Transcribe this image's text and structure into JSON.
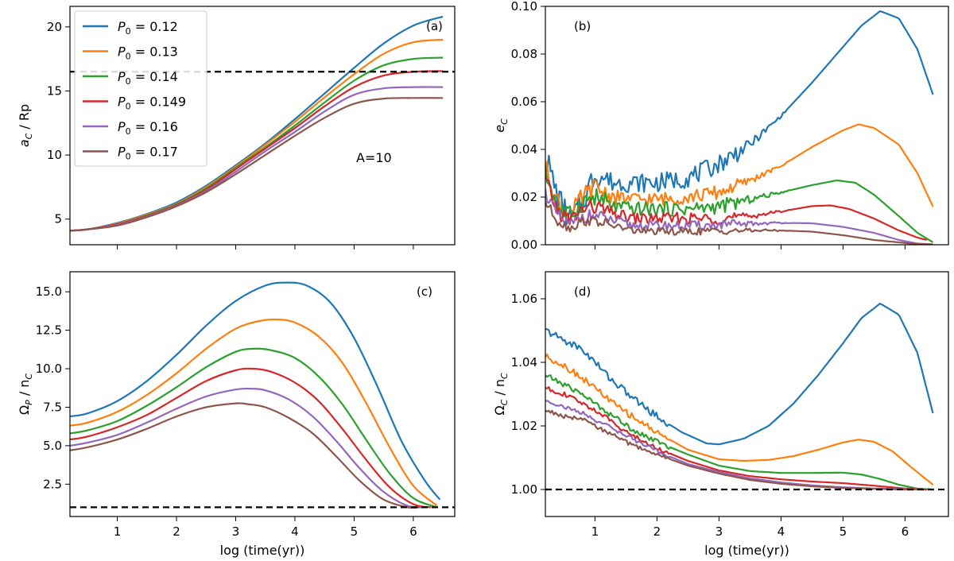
{
  "colors": {
    "series": [
      "#1f77b4",
      "#ff7f0e",
      "#2ca02c",
      "#d62728",
      "#9467bd",
      "#8c564b"
    ],
    "reference": "#000000"
  },
  "legend": [
    "P_0 = 0.12",
    "P_0 = 0.13",
    "P_0 = 0.14",
    "P_0 = 0.149",
    "P_0 = 0.16",
    "P_0 = 0.17"
  ],
  "chart_data": [
    {
      "panel": "a",
      "type": "line",
      "panel_label": "(a)",
      "ylabel": "a_C / Rp",
      "xlabel": "",
      "xlim": [
        0.2,
        6.7
      ],
      "ylim": [
        3.0,
        21.6
      ],
      "xticks": [
        1,
        2,
        3,
        4,
        5,
        6
      ],
      "show_xtick_labels": false,
      "yticks": [
        5,
        10,
        15,
        20
      ],
      "ytick_labels": [
        "5",
        "10",
        "15",
        "20"
      ],
      "annotation": "A=10",
      "legend_placement": "top-left",
      "reference_line": {
        "y": 16.5,
        "style": "dashed"
      },
      "series": [
        {
          "name": "P_0 = 0.12",
          "x": [
            0.2,
            0.5,
            1.0,
            1.5,
            2.0,
            2.5,
            3.0,
            3.5,
            4.0,
            4.5,
            5.0,
            5.5,
            6.0,
            6.5
          ],
          "y": [
            4.1,
            4.2,
            4.7,
            5.4,
            6.3,
            7.6,
            9.2,
            10.9,
            12.8,
            14.8,
            16.8,
            18.7,
            20.1,
            20.8
          ]
        },
        {
          "name": "P_0 = 0.13",
          "x": [
            0.2,
            0.5,
            1.0,
            1.5,
            2.0,
            2.5,
            3.0,
            3.5,
            4.0,
            4.5,
            5.0,
            5.5,
            6.0,
            6.5
          ],
          "y": [
            4.1,
            4.2,
            4.65,
            5.35,
            6.2,
            7.5,
            9.1,
            10.8,
            12.6,
            14.5,
            16.3,
            17.9,
            18.8,
            19.0
          ]
        },
        {
          "name": "P_0 = 0.14",
          "x": [
            0.2,
            0.5,
            1.0,
            1.5,
            2.0,
            2.5,
            3.0,
            3.5,
            4.0,
            4.5,
            5.0,
            5.5,
            6.0,
            6.5
          ],
          "y": [
            4.1,
            4.2,
            4.6,
            5.3,
            6.15,
            7.4,
            9.0,
            10.6,
            12.3,
            14.1,
            15.8,
            17.0,
            17.5,
            17.6
          ]
        },
        {
          "name": "P_0 = 0.149",
          "x": [
            0.2,
            0.5,
            1.0,
            1.5,
            2.0,
            2.5,
            3.0,
            3.5,
            4.0,
            4.5,
            5.0,
            5.5,
            6.0,
            6.5
          ],
          "y": [
            4.1,
            4.2,
            4.6,
            5.25,
            6.1,
            7.3,
            8.9,
            10.5,
            12.1,
            13.8,
            15.3,
            16.2,
            16.5,
            16.55
          ]
        },
        {
          "name": "P_0 = 0.16",
          "x": [
            0.2,
            0.5,
            1.0,
            1.5,
            2.0,
            2.5,
            3.0,
            3.5,
            4.0,
            4.5,
            5.0,
            5.5,
            6.0,
            6.5
          ],
          "y": [
            4.1,
            4.2,
            4.55,
            5.2,
            6.05,
            7.2,
            8.7,
            10.3,
            11.8,
            13.4,
            14.7,
            15.2,
            15.3,
            15.3
          ]
        },
        {
          "name": "P_0 = 0.17",
          "x": [
            0.2,
            0.5,
            1.0,
            1.5,
            2.0,
            2.5,
            3.0,
            3.5,
            4.0,
            4.5,
            5.0,
            5.5,
            6.0,
            6.5
          ],
          "y": [
            4.1,
            4.2,
            4.5,
            5.15,
            6.0,
            7.1,
            8.5,
            10.0,
            11.5,
            12.9,
            14.0,
            14.4,
            14.45,
            14.45
          ]
        }
      ]
    },
    {
      "panel": "b",
      "type": "line",
      "panel_label": "(b)",
      "ylabel": "e_C",
      "xlabel": "",
      "xlim": [
        0.2,
        6.7
      ],
      "ylim": [
        0.0,
        0.1
      ],
      "xticks": [
        1,
        2,
        3,
        4,
        5,
        6
      ],
      "show_xtick_labels": false,
      "yticks": [
        0.0,
        0.02,
        0.04,
        0.06,
        0.08,
        0.1
      ],
      "ytick_labels": [
        "0.00",
        "0.02",
        "0.04",
        "0.06",
        "0.08",
        "0.10"
      ],
      "series": [
        {
          "name": "P_0 = 0.12",
          "noise": 0.004,
          "x": [
            0.2,
            0.4,
            0.6,
            0.8,
            1.0,
            1.3,
            1.6,
            2.0,
            2.5,
            3.0,
            3.5,
            4.0,
            4.5,
            5.0,
            5.3,
            5.6,
            5.9,
            6.2,
            6.45
          ],
          "y": [
            0.038,
            0.02,
            0.01,
            0.018,
            0.03,
            0.026,
            0.026,
            0.026,
            0.028,
            0.034,
            0.042,
            0.054,
            0.068,
            0.083,
            0.092,
            0.098,
            0.095,
            0.082,
            0.063
          ]
        },
        {
          "name": "P_0 = 0.13",
          "noise": 0.003,
          "x": [
            0.2,
            0.4,
            0.6,
            0.8,
            1.0,
            1.3,
            1.6,
            2.0,
            2.5,
            3.0,
            3.5,
            4.0,
            4.5,
            5.0,
            5.25,
            5.5,
            5.9,
            6.2,
            6.45
          ],
          "y": [
            0.033,
            0.018,
            0.012,
            0.02,
            0.024,
            0.02,
            0.019,
            0.019,
            0.02,
            0.022,
            0.027,
            0.033,
            0.041,
            0.048,
            0.0505,
            0.049,
            0.042,
            0.03,
            0.016
          ]
        },
        {
          "name": "P_0 = 0.14",
          "noise": 0.003,
          "x": [
            0.2,
            0.4,
            0.6,
            0.8,
            1.0,
            1.3,
            1.6,
            2.0,
            2.5,
            3.0,
            3.5,
            4.0,
            4.5,
            4.9,
            5.2,
            5.5,
            5.9,
            6.2,
            6.45
          ],
          "y": [
            0.03,
            0.016,
            0.012,
            0.018,
            0.02,
            0.016,
            0.015,
            0.015,
            0.015,
            0.016,
            0.019,
            0.022,
            0.025,
            0.027,
            0.026,
            0.021,
            0.012,
            0.005,
            0.001
          ]
        },
        {
          "name": "P_0 = 0.149",
          "noise": 0.0025,
          "x": [
            0.2,
            0.4,
            0.6,
            0.8,
            1.0,
            1.3,
            1.6,
            2.0,
            2.5,
            3.0,
            3.5,
            4.0,
            4.5,
            4.8,
            5.1,
            5.5,
            5.9,
            6.2,
            6.35
          ],
          "y": [
            0.027,
            0.014,
            0.01,
            0.015,
            0.016,
            0.013,
            0.011,
            0.011,
            0.011,
            0.011,
            0.012,
            0.014,
            0.0162,
            0.0165,
            0.015,
            0.011,
            0.006,
            0.003,
            0.002
          ]
        },
        {
          "name": "P_0 = 0.16",
          "noise": 0.002,
          "x": [
            0.2,
            0.4,
            0.6,
            0.8,
            1.0,
            1.3,
            1.6,
            2.0,
            2.5,
            3.0,
            3.5,
            4.0,
            4.5,
            5.0,
            5.5,
            5.9,
            6.2,
            6.45
          ],
          "y": [
            0.022,
            0.012,
            0.008,
            0.012,
            0.012,
            0.01,
            0.008,
            0.008,
            0.008,
            0.0082,
            0.0088,
            0.0092,
            0.009,
            0.0075,
            0.005,
            0.002,
            0.0005,
            0.0002
          ]
        },
        {
          "name": "P_0 = 0.17",
          "noise": 0.0015,
          "x": [
            0.2,
            0.4,
            0.6,
            0.8,
            1.0,
            1.3,
            1.6,
            2.0,
            2.5,
            3.0,
            3.5,
            4.0,
            4.5,
            5.0,
            5.5,
            5.9,
            6.2,
            6.45
          ],
          "y": [
            0.018,
            0.01,
            0.007,
            0.01,
            0.01,
            0.008,
            0.006,
            0.0055,
            0.0055,
            0.0058,
            0.006,
            0.006,
            0.0055,
            0.004,
            0.002,
            0.001,
            0.0003,
            0.0001
          ]
        }
      ]
    },
    {
      "panel": "c",
      "type": "line",
      "panel_label": "(c)",
      "ylabel": "Ω_P / n_C",
      "xlabel": "log (time(yr))",
      "xlim": [
        0.2,
        6.7
      ],
      "ylim": [
        0.4,
        16.3
      ],
      "xticks": [
        1,
        2,
        3,
        4,
        5,
        6
      ],
      "show_xtick_labels": true,
      "yticks": [
        2.5,
        5.0,
        7.5,
        10.0,
        12.5,
        15.0
      ],
      "ytick_labels": [
        "2.5",
        "5.0",
        "7.5",
        "10.0",
        "12.5",
        "15.0"
      ],
      "reference_line": {
        "y": 1.0,
        "style": "dashed"
      },
      "series": [
        {
          "name": "P_0 = 0.12",
          "x": [
            0.2,
            0.5,
            1.0,
            1.5,
            2.0,
            2.5,
            3.0,
            3.5,
            3.85,
            4.2,
            4.6,
            5.0,
            5.4,
            5.8,
            6.2,
            6.45
          ],
          "y": [
            6.9,
            7.1,
            7.9,
            9.2,
            10.9,
            12.8,
            14.4,
            15.4,
            15.6,
            15.4,
            14.3,
            12.0,
            8.8,
            5.3,
            2.7,
            1.5
          ]
        },
        {
          "name": "P_0 = 0.13",
          "x": [
            0.2,
            0.5,
            1.0,
            1.5,
            2.0,
            2.5,
            3.0,
            3.4,
            3.7,
            4.0,
            4.4,
            4.8,
            5.2,
            5.6,
            6.0,
            6.4
          ],
          "y": [
            6.3,
            6.5,
            7.2,
            8.3,
            9.7,
            11.3,
            12.6,
            13.1,
            13.2,
            13.0,
            12.1,
            10.4,
            7.8,
            4.9,
            2.4,
            1.1
          ]
        },
        {
          "name": "P_0 = 0.14",
          "x": [
            0.2,
            0.5,
            1.0,
            1.5,
            2.0,
            2.5,
            3.0,
            3.3,
            3.6,
            4.0,
            4.4,
            4.8,
            5.2,
            5.6,
            6.0,
            6.4
          ],
          "y": [
            5.8,
            6.0,
            6.6,
            7.6,
            8.8,
            10.1,
            11.1,
            11.3,
            11.2,
            10.7,
            9.5,
            7.7,
            5.4,
            3.2,
            1.6,
            1.0
          ]
        },
        {
          "name": "P_0 = 0.149",
          "x": [
            0.2,
            0.5,
            1.0,
            1.5,
            2.0,
            2.5,
            3.0,
            3.3,
            3.6,
            4.0,
            4.4,
            4.8,
            5.2,
            5.6,
            6.0,
            6.3
          ],
          "y": [
            5.4,
            5.6,
            6.2,
            7.0,
            8.1,
            9.2,
            9.9,
            10.0,
            9.8,
            9.1,
            7.9,
            6.1,
            4.1,
            2.3,
            1.2,
            1.0
          ]
        },
        {
          "name": "P_0 = 0.16",
          "x": [
            0.2,
            0.5,
            1.0,
            1.5,
            2.0,
            2.5,
            3.0,
            3.25,
            3.5,
            3.9,
            4.3,
            4.7,
            5.1,
            5.5,
            5.9,
            6.2
          ],
          "y": [
            5.0,
            5.2,
            5.7,
            6.5,
            7.4,
            8.2,
            8.65,
            8.7,
            8.6,
            8.0,
            6.9,
            5.3,
            3.5,
            2.0,
            1.1,
            1.0
          ]
        },
        {
          "name": "P_0 = 0.17",
          "x": [
            0.2,
            0.5,
            1.0,
            1.5,
            2.0,
            2.5,
            3.0,
            3.2,
            3.5,
            3.9,
            4.3,
            4.7,
            5.1,
            5.5,
            5.9,
            6.1
          ],
          "y": [
            4.7,
            4.9,
            5.4,
            6.1,
            6.9,
            7.5,
            7.75,
            7.7,
            7.5,
            6.8,
            5.8,
            4.3,
            2.7,
            1.5,
            1.0,
            1.0
          ]
        }
      ]
    },
    {
      "panel": "d",
      "type": "line",
      "panel_label": "(d)",
      "ylabel": "Ω_C / n_C",
      "xlabel": "log (time(yr))",
      "xlim": [
        0.2,
        6.7
      ],
      "ylim": [
        0.9915,
        1.0685
      ],
      "xticks": [
        1,
        2,
        3,
        4,
        5,
        6
      ],
      "show_xtick_labels": true,
      "yticks": [
        1.0,
        1.02,
        1.04,
        1.06
      ],
      "ytick_labels": [
        "1.00",
        "1.02",
        "1.04",
        "1.06"
      ],
      "reference_line": {
        "y": 1.0,
        "style": "dashed"
      },
      "series": [
        {
          "name": "P_0 = 0.12",
          "noise": 0.0012,
          "x": [
            0.2,
            0.5,
            0.8,
            1.0,
            1.3,
            1.6,
            2.0,
            2.4,
            2.8,
            3.0,
            3.4,
            3.8,
            4.2,
            4.6,
            5.0,
            5.3,
            5.6,
            5.9,
            6.2,
            6.45
          ],
          "y": [
            1.05,
            1.047,
            1.044,
            1.04,
            1.034,
            1.029,
            1.023,
            1.018,
            1.0145,
            1.0142,
            1.016,
            1.02,
            1.027,
            1.036,
            1.046,
            1.054,
            1.0585,
            1.055,
            1.043,
            1.024
          ]
        },
        {
          "name": "P_0 = 0.13",
          "noise": 0.001,
          "x": [
            0.2,
            0.5,
            0.8,
            1.0,
            1.3,
            1.6,
            2.0,
            2.5,
            3.0,
            3.4,
            3.8,
            4.2,
            4.6,
            5.0,
            5.25,
            5.5,
            5.8,
            6.1,
            6.45
          ],
          "y": [
            1.042,
            1.039,
            1.035,
            1.032,
            1.027,
            1.023,
            1.018,
            1.0125,
            1.0095,
            1.009,
            1.0093,
            1.0105,
            1.0125,
            1.0148,
            1.0157,
            1.015,
            1.012,
            1.007,
            1.0015
          ]
        },
        {
          "name": "P_0 = 0.14",
          "noise": 0.0008,
          "x": [
            0.2,
            0.5,
            0.8,
            1.0,
            1.3,
            1.6,
            2.0,
            2.5,
            3.0,
            3.5,
            4.0,
            4.5,
            5.0,
            5.3,
            5.6,
            5.9,
            6.2,
            6.45
          ],
          "y": [
            1.036,
            1.033,
            1.03,
            1.027,
            1.023,
            1.019,
            1.015,
            1.011,
            1.0075,
            1.0058,
            1.0052,
            1.0052,
            1.0053,
            1.0047,
            1.0033,
            1.0015,
            1.0003,
            1.0
          ]
        },
        {
          "name": "P_0 = 0.149",
          "noise": 0.0007,
          "x": [
            0.2,
            0.5,
            0.8,
            1.0,
            1.3,
            1.6,
            2.0,
            2.5,
            3.0,
            3.5,
            4.0,
            4.5,
            5.0,
            5.5,
            6.0,
            6.35
          ],
          "y": [
            1.032,
            1.03,
            1.027,
            1.025,
            1.021,
            1.017,
            1.013,
            1.009,
            1.006,
            1.0042,
            1.0032,
            1.0025,
            1.002,
            1.0012,
            1.0003,
            1.0
          ]
        },
        {
          "name": "P_0 = 0.16",
          "noise": 0.0006,
          "x": [
            0.2,
            0.5,
            0.8,
            1.0,
            1.3,
            1.6,
            2.0,
            2.5,
            3.0,
            3.5,
            4.0,
            4.5,
            5.0,
            5.5,
            6.0,
            6.3
          ],
          "y": [
            1.028,
            1.026,
            1.024,
            1.022,
            1.019,
            1.016,
            1.012,
            1.008,
            1.0055,
            1.0035,
            1.0022,
            1.0013,
            1.0007,
            1.0003,
            1.0001,
            1.0
          ]
        },
        {
          "name": "P_0 = 0.17",
          "noise": 0.0006,
          "x": [
            0.2,
            0.5,
            0.8,
            1.0,
            1.3,
            1.6,
            2.0,
            2.5,
            3.0,
            3.5,
            4.0,
            4.5,
            5.0,
            5.5,
            6.0,
            6.2
          ],
          "y": [
            1.025,
            1.023,
            1.022,
            1.02,
            1.017,
            1.014,
            1.011,
            1.0075,
            1.005,
            1.003,
            1.0018,
            1.001,
            1.0005,
            1.0002,
            1.0,
            1.0
          ]
        }
      ]
    }
  ]
}
